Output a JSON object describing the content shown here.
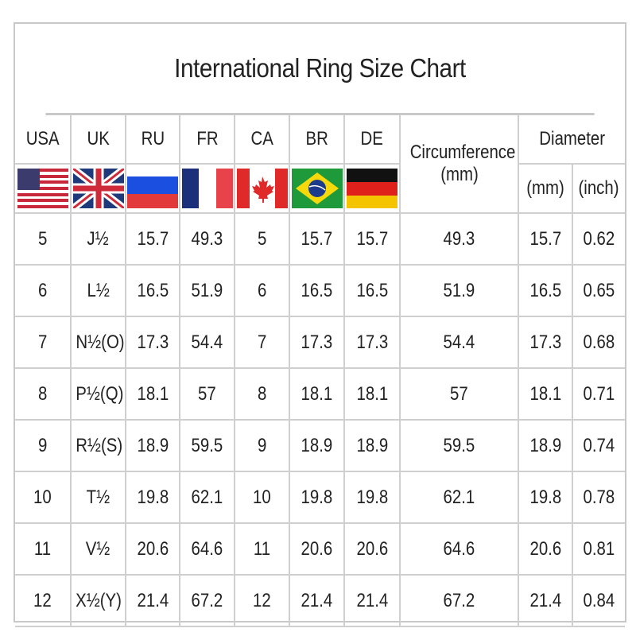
{
  "title": "International Ring Size Chart",
  "headers": {
    "usa": "USA",
    "uk": "UK",
    "ru": "RU",
    "fr": "FR",
    "ca": "CA",
    "br": "BR",
    "de": "DE",
    "circumference": "Circumference",
    "circ_unit": "(mm)",
    "diameter": "Diameter",
    "dia_mm": "(mm)",
    "dia_inch": "(inch)"
  },
  "flags": [
    "us-flag-icon",
    "uk-flag-icon",
    "russia-flag-icon",
    "france-flag-icon",
    "canada-flag-icon",
    "brazil-flag-icon",
    "germany-flag-icon"
  ],
  "rows": [
    [
      "5",
      "J½",
      "15.7",
      "49.3",
      "5",
      "15.7",
      "15.7",
      "49.3",
      "15.7",
      "0.62"
    ],
    [
      "6",
      "L½",
      "16.5",
      "51.9",
      "6",
      "16.5",
      "16.5",
      "51.9",
      "16.5",
      "0.65"
    ],
    [
      "7",
      "N½(O)",
      "17.3",
      "54.4",
      "7",
      "17.3",
      "17.3",
      "54.4",
      "17.3",
      "0.68"
    ],
    [
      "8",
      "P½(Q)",
      "18.1",
      "57",
      "8",
      "18.1",
      "18.1",
      "57",
      "18.1",
      "0.71"
    ],
    [
      "9",
      "R½(S)",
      "18.9",
      "59.5",
      "9",
      "18.9",
      "18.9",
      "59.5",
      "18.9",
      "0.74"
    ],
    [
      "10",
      "T½",
      "19.8",
      "62.1",
      "10",
      "19.8",
      "19.8",
      "62.1",
      "19.8",
      "0.78"
    ],
    [
      "11",
      "V½",
      "20.6",
      "64.6",
      "11",
      "20.6",
      "20.6",
      "64.6",
      "20.6",
      "0.81"
    ],
    [
      "12",
      "X½(Y)",
      "21.4",
      "67.2",
      "12",
      "21.4",
      "21.4",
      "67.2",
      "21.4",
      "0.84"
    ]
  ]
}
